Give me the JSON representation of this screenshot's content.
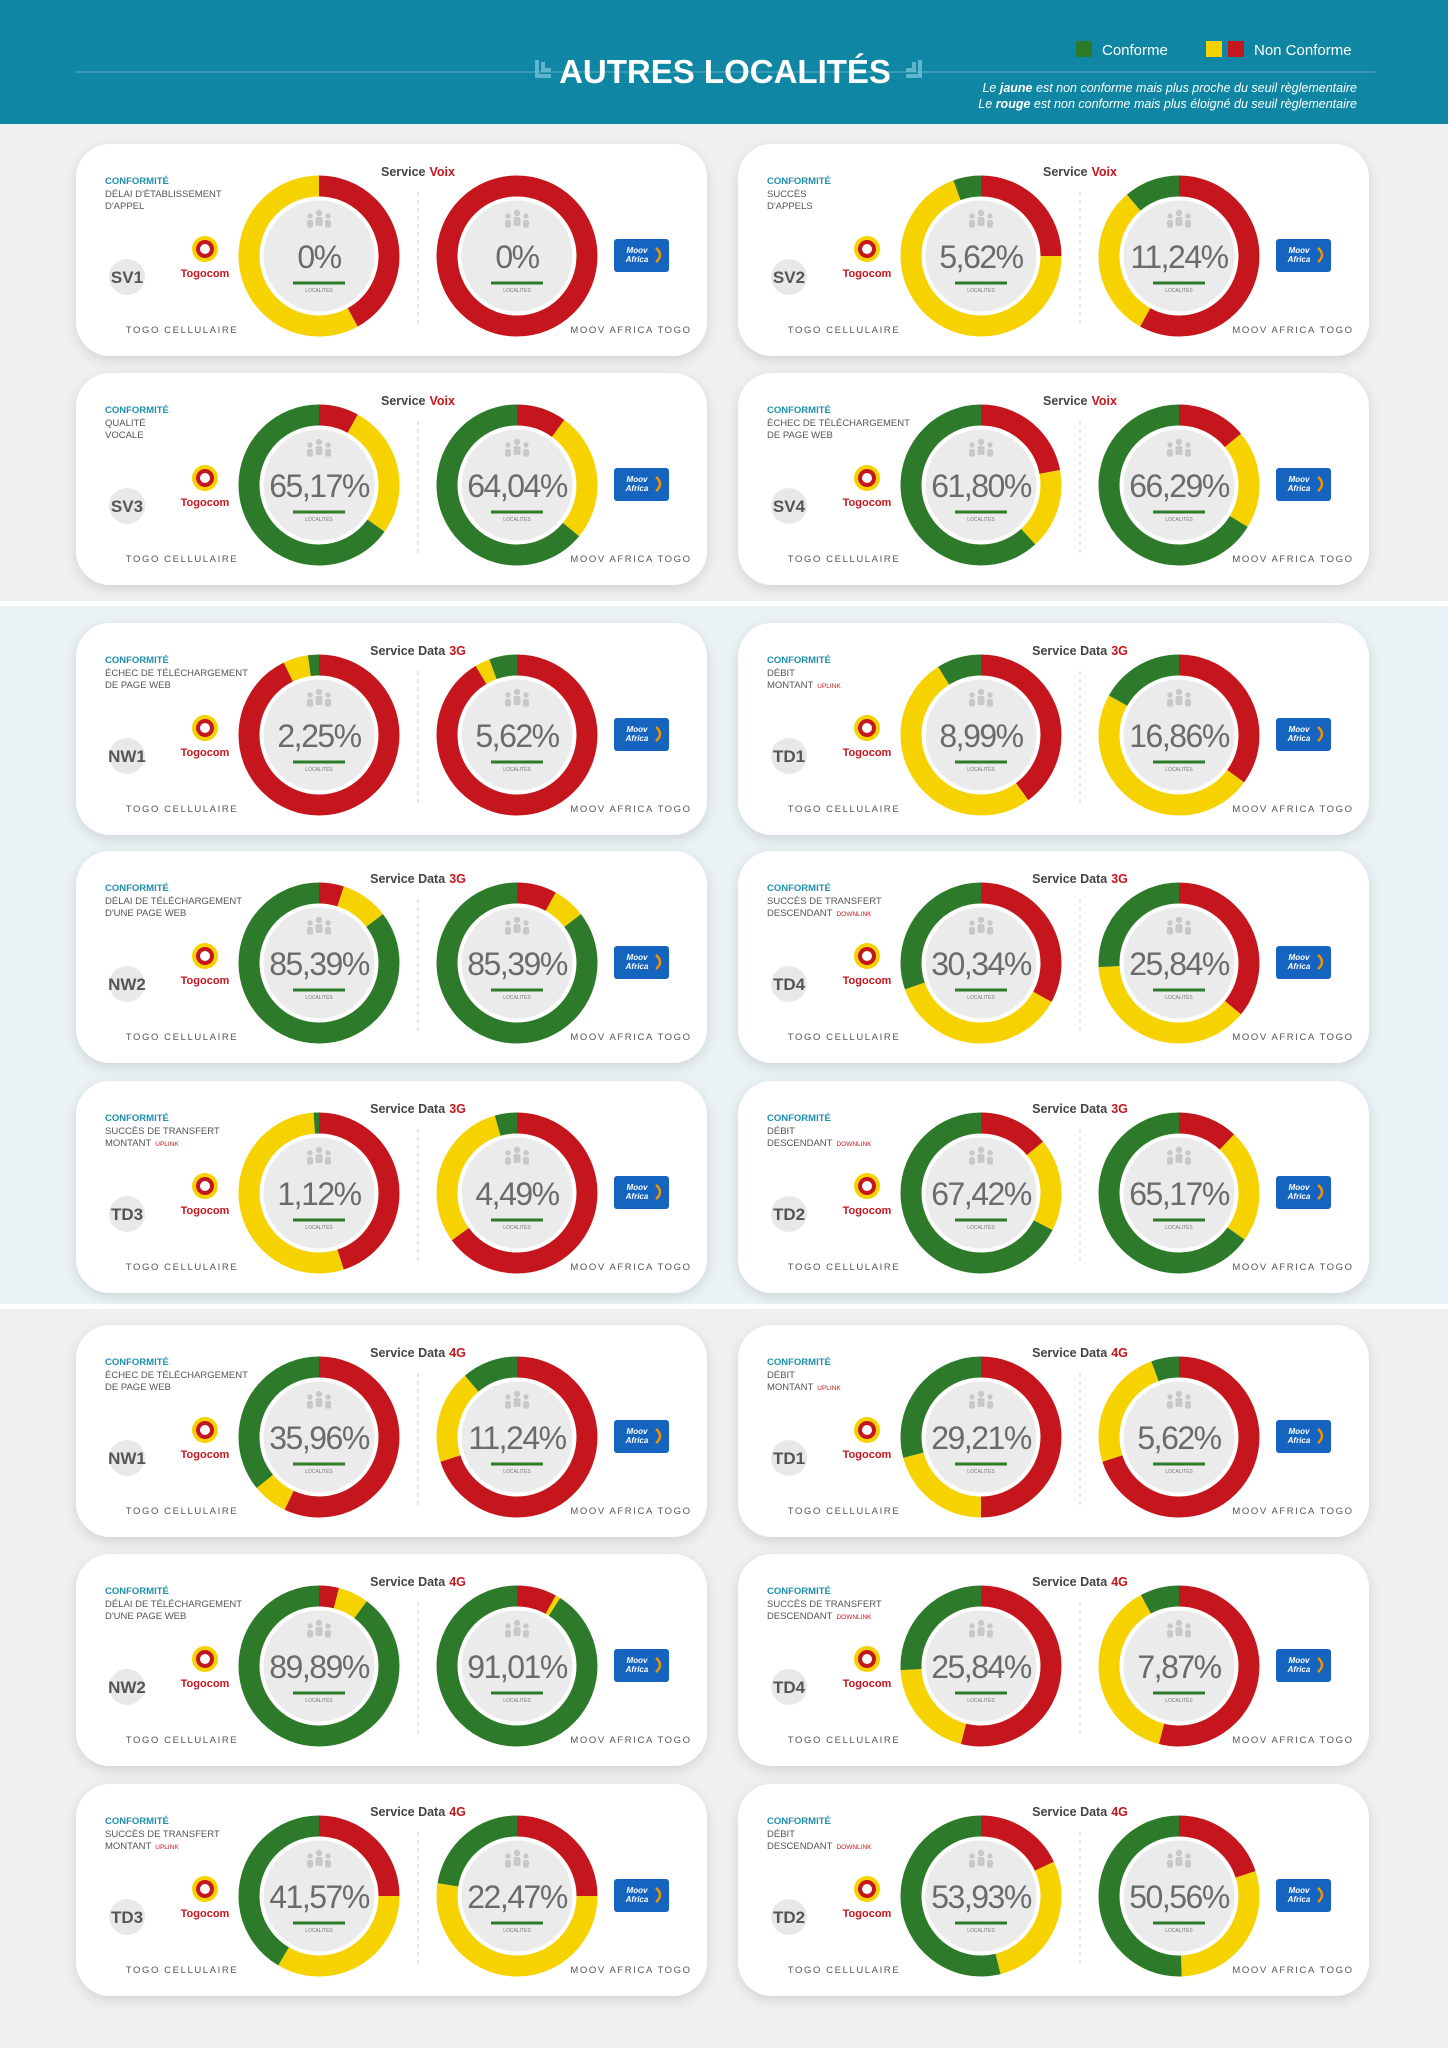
{
  "header": {
    "title": "AUTRES LOCALITÉS",
    "legend": {
      "conforme": "Conforme",
      "non_conforme": "Non Conforme"
    },
    "note_yellow": [
      "Le ",
      "jaune",
      " est non conforme mais plus proche du seuil règlementaire"
    ],
    "note_red": [
      "Le ",
      "rouge",
      " est non conforme mais plus éloigné du seuil règlementaire"
    ]
  },
  "colors": {
    "conforme": "#2d7a2a",
    "jaune": "#f6d300",
    "rouge": "#c5161d"
  },
  "labels": {
    "conformite": "CONFORMITÉ",
    "localites": "LOCALITÉS",
    "togocom": "Togocom",
    "moov": [
      "Moov",
      "Africa"
    ],
    "operator_1": "TOGO CELLULAIRE",
    "operator_2": "MOOV AFRICA TOGO"
  },
  "cards": [
    {
      "code": "SV1",
      "indicator": [
        "DÉLAI D'ÉTABLISSEMENT",
        "D'APPEL"
      ],
      "service": "Service",
      "service_tag": "Voix",
      "donuts": [
        {
          "conforme": 0,
          "label": "0%",
          "jaune": 58,
          "rouge": 42
        },
        {
          "conforme": 0,
          "label": "0%",
          "jaune": 0,
          "rouge": 100
        }
      ]
    },
    {
      "code": "SV2",
      "indicator": [
        "SUCCÈS",
        "D'APPELS"
      ],
      "service": "Service",
      "service_tag": "Voix",
      "donuts": [
        {
          "conforme": 5.62,
          "label": "5,62%",
          "jaune": 69.38,
          "rouge": 25
        },
        {
          "conforme": 11.24,
          "label": "11,24%",
          "jaune": 30.76,
          "rouge": 58
        }
      ]
    },
    {
      "code": "SV3",
      "indicator": [
        "QUALITÉ",
        "VOCALE"
      ],
      "service": "Service",
      "service_tag": "Voix",
      "donuts": [
        {
          "conforme": 65.17,
          "label": "65,17%",
          "jaune": 26.83,
          "rouge": 8
        },
        {
          "conforme": 64.04,
          "label": "64,04%",
          "jaune": 25.96,
          "rouge": 10
        }
      ]
    },
    {
      "code": "SV4",
      "indicator": [
        "ÉCHEC DE TÉLÉCHARGEMENT",
        "DE PAGE WEB"
      ],
      "service": "Service",
      "service_tag": "Voix",
      "donuts": [
        {
          "conforme": 61.8,
          "label": "61,80%",
          "jaune": 16.2,
          "rouge": 22
        },
        {
          "conforme": 66.29,
          "label": "66,29%",
          "jaune": 19.71,
          "rouge": 14
        }
      ]
    },
    {
      "code": "NW1",
      "indicator": [
        "ÉCHEC DE TÉLÉCHARGEMENT",
        "DE PAGE WEB"
      ],
      "service": "Service Data",
      "service_tag": "3G",
      "donuts": [
        {
          "conforme": 2.25,
          "label": "2,25%",
          "jaune": 5,
          "rouge": 92.75
        },
        {
          "conforme": 5.62,
          "label": "5,62%",
          "jaune": 3,
          "rouge": 91.38
        }
      ]
    },
    {
      "code": "TD1",
      "indicator": [
        "DÉBIT",
        "MONTANT"
      ],
      "tag": "UPLINK",
      "service": "Service Data",
      "service_tag": "3G",
      "donuts": [
        {
          "conforme": 8.99,
          "label": "8,99%",
          "jaune": 51.01,
          "rouge": 40
        },
        {
          "conforme": 16.86,
          "label": "16,86%",
          "jaune": 48.14,
          "rouge": 35
        }
      ]
    },
    {
      "code": "NW2",
      "indicator": [
        "DÉLAI DE TÉLÉCHARGEMENT",
        "D'UNE PAGE WEB"
      ],
      "service": "Service Data",
      "service_tag": "3G",
      "donuts": [
        {
          "conforme": 85.39,
          "label": "85,39%",
          "jaune": 9.61,
          "rouge": 5
        },
        {
          "conforme": 85.39,
          "label": "85,39%",
          "jaune": 6.61,
          "rouge": 8
        }
      ]
    },
    {
      "code": "TD4",
      "indicator": [
        "SUCCÈS DE TRANSFERT",
        "DESCENDANT"
      ],
      "tag": "DOWNLINK",
      "service": "Service Data",
      "service_tag": "3G",
      "donuts": [
        {
          "conforme": 30.34,
          "label": "30,34%",
          "jaune": 36.66,
          "rouge": 33
        },
        {
          "conforme": 25.84,
          "label": "25,84%",
          "jaune": 38.16,
          "rouge": 36
        }
      ]
    },
    {
      "code": "TD3",
      "indicator": [
        "SUCCÈS DE TRANSFERT",
        "MONTANT"
      ],
      "tag": "UPLINK",
      "service": "Service Data",
      "service_tag": "3G",
      "donuts": [
        {
          "conforme": 1.12,
          "label": "1,12%",
          "jaune": 53.88,
          "rouge": 45
        },
        {
          "conforme": 4.49,
          "label": "4,49%",
          "jaune": 30.51,
          "rouge": 65
        }
      ]
    },
    {
      "code": "TD2",
      "indicator": [
        "DÉBIT",
        "DESCENDANT"
      ],
      "tag": "DOWNLINK",
      "service": "Service Data",
      "service_tag": "3G",
      "donuts": [
        {
          "conforme": 67.42,
          "label": "67,42%",
          "jaune": 18.58,
          "rouge": 14
        },
        {
          "conforme": 65.17,
          "label": "65,17%",
          "jaune": 22.83,
          "rouge": 12
        }
      ]
    },
    {
      "code": "NW1",
      "indicator": [
        "ÉCHEC DE TÉLÉCHARGEMENT",
        "DE PAGE WEB"
      ],
      "service": "Service Data",
      "service_tag": "4G",
      "donuts": [
        {
          "conforme": 35.96,
          "label": "35,96%",
          "jaune": 7.04,
          "rouge": 57
        },
        {
          "conforme": 11.24,
          "label": "11,24%",
          "jaune": 18.76,
          "rouge": 70
        }
      ]
    },
    {
      "code": "TD1",
      "indicator": [
        "DÉBIT",
        "MONTANT"
      ],
      "tag": "UPLINK",
      "service": "Service Data",
      "service_tag": "4G",
      "donuts": [
        {
          "conforme": 29.21,
          "label": "29,21%",
          "jaune": 20.79,
          "rouge": 50
        },
        {
          "conforme": 5.62,
          "label": "5,62%",
          "jaune": 24.38,
          "rouge": 70
        }
      ]
    },
    {
      "code": "NW2",
      "indicator": [
        "DÉLAI DE TÉLÉCHARGEMENT",
        "D'UNE PAGE WEB"
      ],
      "service": "Service Data",
      "service_tag": "4G",
      "donuts": [
        {
          "conforme": 89.89,
          "label": "89,89%",
          "jaune": 6.11,
          "rouge": 4
        },
        {
          "conforme": 91.01,
          "label": "91,01%",
          "jaune": 0.99,
          "rouge": 8
        }
      ]
    },
    {
      "code": "TD4",
      "indicator": [
        "SUCCÈS DE TRANSFERT",
        "DESCENDANT"
      ],
      "tag": "DOWNLINK",
      "service": "Service Data",
      "service_tag": "4G",
      "donuts": [
        {
          "conforme": 25.84,
          "label": "25,84%",
          "jaune": 20.16,
          "rouge": 54
        },
        {
          "conforme": 7.87,
          "label": "7,87%",
          "jaune": 38.13,
          "rouge": 54
        }
      ]
    },
    {
      "code": "TD3",
      "indicator": [
        "SUCCÈS DE TRANSFERT",
        "MONTANT"
      ],
      "tag": "UPLINK",
      "service": "Service Data",
      "service_tag": "4G",
      "donuts": [
        {
          "conforme": 41.57,
          "label": "41,57%",
          "jaune": 33.43,
          "rouge": 25
        },
        {
          "conforme": 22.47,
          "label": "22,47%",
          "jaune": 52.53,
          "rouge": 25
        }
      ]
    },
    {
      "code": "TD2",
      "indicator": [
        "DÉBIT",
        "DESCENDANT"
      ],
      "tag": "DOWNLINK",
      "service": "Service Data",
      "service_tag": "4G",
      "donuts": [
        {
          "conforme": 53.93,
          "label": "53,93%",
          "jaune": 28.07,
          "rouge": 18
        },
        {
          "conforme": 50.56,
          "label": "50,56%",
          "jaune": 29.44,
          "rouge": 20
        }
      ]
    }
  ]
}
